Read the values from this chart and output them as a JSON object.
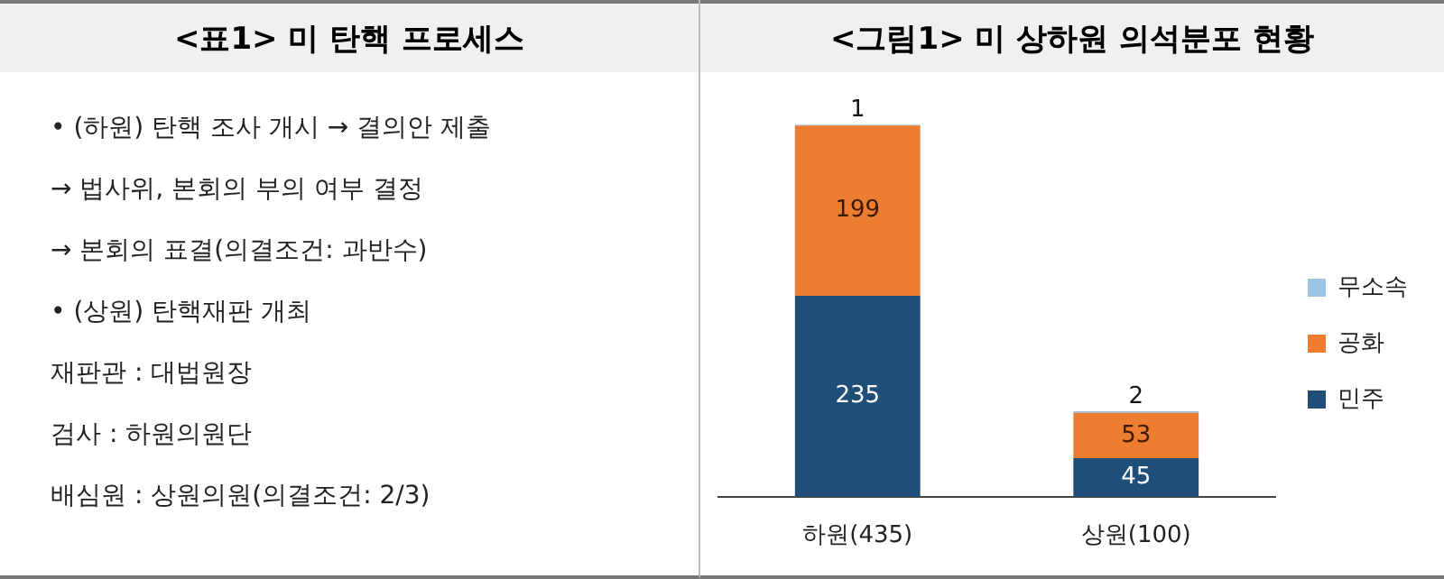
{
  "chart_data": [
    {
      "type": "other",
      "title": "<표1> 미 탄핵 프로세스",
      "annotations": [
        "• (하원) 탄핵 조사 개시 → 결의안 제출",
        "→ 법사위, 본회의 부의 여부 결정",
        "→ 본회의 표결(의결조건: 과반수)",
        "• (상원) 탄핵재판 개최",
        "재판관 : 대법원장",
        "검사 : 하원의원단",
        "배심원 : 상원의원(의결조건: 2/3)"
      ]
    },
    {
      "type": "bar",
      "title": "<그림1> 미 상하원 의석분포 현황",
      "categories": [
        "하원(435)",
        "상원(100)"
      ],
      "stacked": true,
      "data_labels": true,
      "legend": "right",
      "grid": false,
      "series": [
        {
          "name": "민주",
          "color": "#1f4e79",
          "values": [
            235,
            45
          ]
        },
        {
          "name": "공화",
          "color": "#ed7d31",
          "values": [
            199,
            53
          ]
        },
        {
          "name": "무소속",
          "color": "#9dc3e6",
          "values": [
            1,
            2
          ]
        }
      ]
    }
  ]
}
